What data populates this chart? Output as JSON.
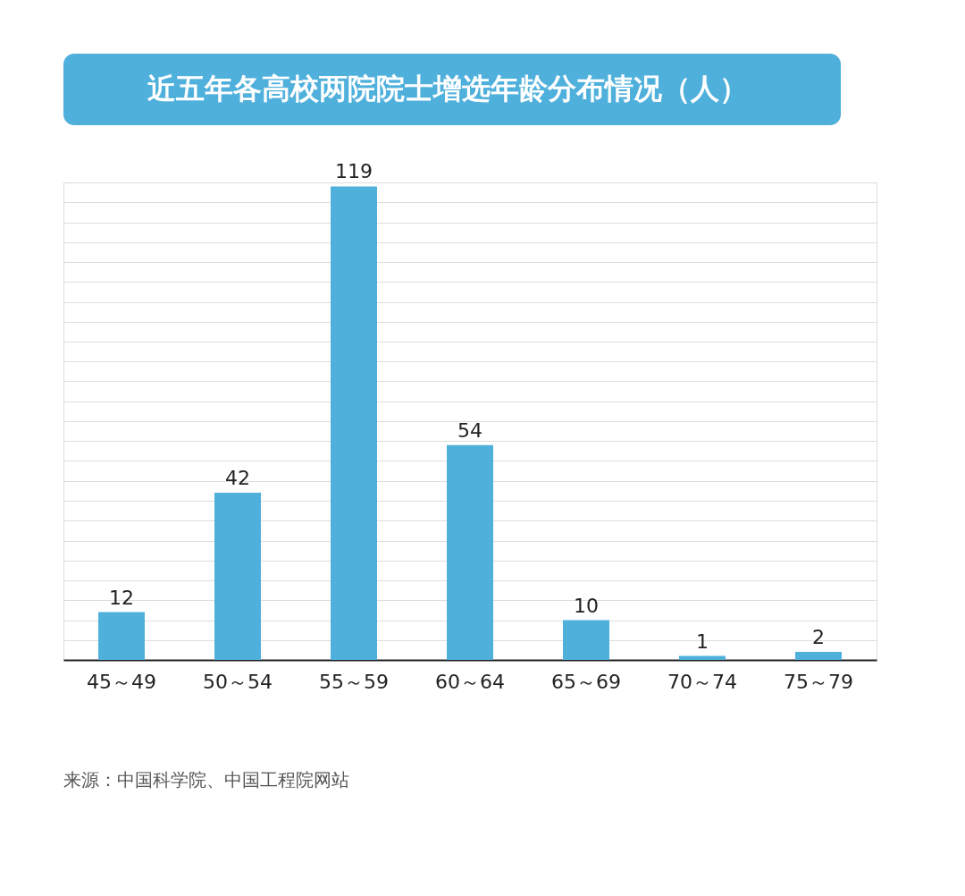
{
  "chart_data": {
    "type": "bar",
    "title": "近五年各高校两院院士增选年龄分布情况（人）",
    "categories": [
      "45～49",
      "50～54",
      "55～59",
      "60～64",
      "65～69",
      "70～74",
      "75～79"
    ],
    "values": [
      12,
      42,
      119,
      54,
      10,
      1,
      2
    ],
    "color": "#4fb0dc",
    "data_labels": true,
    "grid": "y",
    "tick_labels": "x",
    "annotations": [
      "来源：中国科学院、中国工程院网站"
    ]
  }
}
